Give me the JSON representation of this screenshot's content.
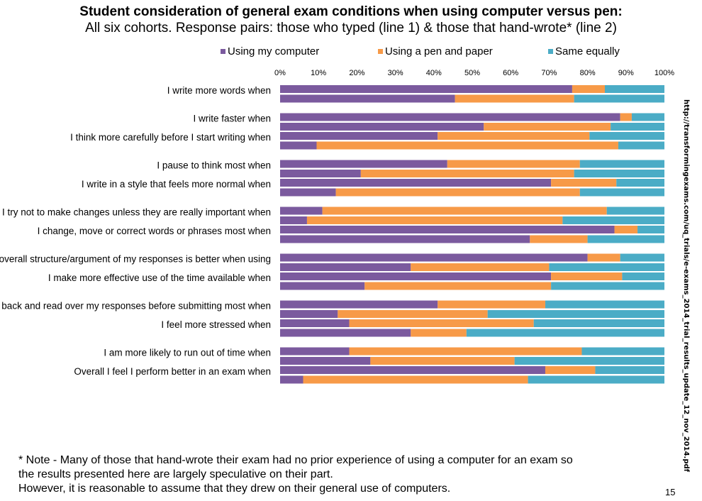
{
  "chart_data": {
    "type": "bar",
    "orientation": "horizontal",
    "stacked": "percent",
    "title": "Student consideration of general exam conditions when using computer versus pen:",
    "subtitle": "All six cohorts. Response pairs: those who typed (line 1) & those that hand-wrote* (line 2)",
    "xlim": [
      0,
      100
    ],
    "x_ticks": [
      "0%",
      "10%",
      "20%",
      "30%",
      "40%",
      "50%",
      "60%",
      "70%",
      "80%",
      "90%",
      "100%"
    ],
    "legend_position": "top",
    "legend": [
      "Using my computer",
      "Using a pen and paper",
      "Same equally"
    ],
    "colors": [
      "#7B5A9E",
      "#F79A48",
      "#4BACC6"
    ],
    "grid": false,
    "categories": [
      {
        "label": "I write more words when",
        "typed": [
          76,
          8.5,
          15.5
        ],
        "handwrote": [
          45.5,
          31,
          23.5
        ]
      },
      {
        "label": "I write faster when",
        "typed": [
          88.5,
          3,
          8.5
        ],
        "handwrote": [
          53,
          33,
          14
        ]
      },
      {
        "label": "I think more carefully before I start writing when",
        "typed": [
          41,
          39.5,
          19.5
        ],
        "handwrote": [
          9.5,
          78.5,
          12
        ]
      },
      {
        "label": "I pause to think most when",
        "typed": [
          43.5,
          34.5,
          22
        ],
        "handwrote": [
          21,
          55.5,
          23.5
        ]
      },
      {
        "label": "I write in a style that feels more normal when",
        "typed": [
          70.5,
          17,
          12.5
        ],
        "handwrote": [
          14.5,
          63.5,
          22
        ]
      },
      {
        "label": "I try not to make changes unless they are really important when",
        "typed": [
          11,
          74,
          15
        ],
        "handwrote": [
          7,
          66.5,
          26.5
        ]
      },
      {
        "label": "I change, move or correct words or phrases most when",
        "typed": [
          87,
          6,
          7
        ],
        "handwrote": [
          65,
          15,
          20
        ]
      },
      {
        "label": "I think the overall structure/argument of my responses is better when using",
        "typed": [
          80,
          8.5,
          11.5
        ],
        "handwrote": [
          34,
          36,
          30
        ]
      },
      {
        "label": "I make more effective use of the time available when",
        "typed": [
          70.5,
          18.5,
          11
        ],
        "handwrote": [
          22,
          48.5,
          29.5
        ]
      },
      {
        "label": "I go back and read over my responses before submitting most when",
        "typed": [
          41,
          28,
          31
        ],
        "handwrote": [
          15,
          39,
          46
        ]
      },
      {
        "label": "I feel more stressed when",
        "typed": [
          18,
          48,
          34
        ],
        "handwrote": [
          34,
          14.5,
          51.5
        ]
      },
      {
        "label": "I am more likely to run out of time when",
        "typed": [
          18,
          60.5,
          21.5
        ],
        "handwrote": [
          23.5,
          37.5,
          39
        ]
      },
      {
        "label": "Overall I feel I perform better in an exam when",
        "typed": [
          69,
          13,
          18
        ],
        "handwrote": [
          6,
          58.5,
          35.5
        ]
      }
    ]
  },
  "notes": [
    "* Note - Many of those that hand-wrote their exam had no prior experience of using a computer for an exam so",
    "the results presented here are largely speculative on their part.",
    "However, it is reasonable to assume that they drew on their general use of computers."
  ],
  "page_number": "15",
  "source_url": "http://transformingexams.com/uq_trials/e-exams_2014_trial_results_update_12_nov_2014.pdf"
}
